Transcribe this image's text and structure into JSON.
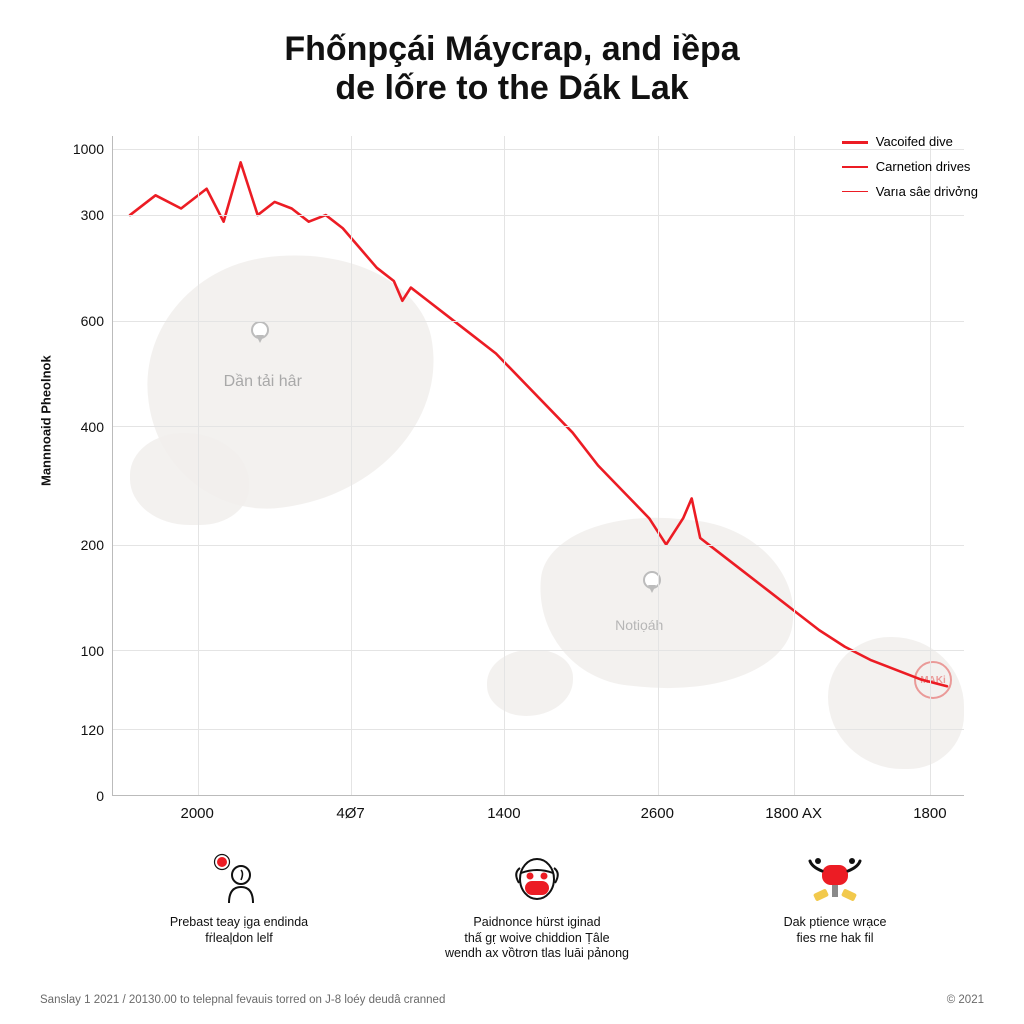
{
  "title_line1": "Fhốnpçái Máycrap, and iềpa",
  "title_line2": "de lốre to the Dák Lak",
  "title_fontsize": 34,
  "title_color": "#111111",
  "chart": {
    "type": "line",
    "background_color": "#ffffff",
    "grid_color": "#e4e4e4",
    "axis_color": "#bbbbbb",
    "yaxis_title": "Mannnoaid Pheolnok",
    "yaxis_title_fontsize": 13,
    "tick_fontsize": 14,
    "x_ticks": [
      {
        "pos_pct": 10,
        "label": "2000"
      },
      {
        "pos_pct": 28,
        "label": "4Ø7"
      },
      {
        "pos_pct": 46,
        "label": "1400"
      },
      {
        "pos_pct": 64,
        "label": "2600"
      },
      {
        "pos_pct": 80,
        "label": "1800 AX"
      },
      {
        "pos_pct": 96,
        "label": "1800"
      }
    ],
    "y_ticks": [
      {
        "pos_pct": 100,
        "label": "0"
      },
      {
        "pos_pct": 90,
        "label": "120"
      },
      {
        "pos_pct": 78,
        "label": "100"
      },
      {
        "pos_pct": 62,
        "label": "200"
      },
      {
        "pos_pct": 44,
        "label": "400"
      },
      {
        "pos_pct": 28,
        "label": "600"
      },
      {
        "pos_pct": 12,
        "label": "300"
      },
      {
        "pos_pct": 2,
        "label": "1000"
      }
    ],
    "y_grid_pct": [
      2,
      12,
      28,
      44,
      62,
      78,
      90
    ],
    "x_grid_pct": [
      10,
      28,
      46,
      64,
      80,
      96
    ],
    "line_color": "#ec1c24",
    "line_width": 2.6,
    "series_points_pct": [
      [
        2,
        12
      ],
      [
        5,
        9
      ],
      [
        8,
        11
      ],
      [
        11,
        8
      ],
      [
        13,
        13
      ],
      [
        15,
        4
      ],
      [
        17,
        12
      ],
      [
        19,
        10
      ],
      [
        21,
        11
      ],
      [
        23,
        13
      ],
      [
        25,
        12
      ],
      [
        27,
        14
      ],
      [
        29,
        17
      ],
      [
        31,
        20
      ],
      [
        33,
        22
      ],
      [
        34,
        25
      ],
      [
        35,
        23
      ],
      [
        37,
        25
      ],
      [
        39,
        27
      ],
      [
        42,
        30
      ],
      [
        45,
        33
      ],
      [
        48,
        37
      ],
      [
        51,
        41
      ],
      [
        54,
        45
      ],
      [
        57,
        50
      ],
      [
        60,
        54
      ],
      [
        63,
        58
      ],
      [
        65,
        62
      ],
      [
        67,
        58
      ],
      [
        68,
        55
      ],
      [
        69,
        61
      ],
      [
        71,
        63
      ],
      [
        74,
        66
      ],
      [
        77,
        69
      ],
      [
        80,
        72
      ],
      [
        83,
        75
      ],
      [
        86,
        77.5
      ],
      [
        89,
        79.5
      ],
      [
        92,
        81
      ],
      [
        95,
        82.5
      ],
      [
        98,
        83.5
      ]
    ],
    "map_label_1": "Dần tải hâr",
    "map_label_2": "Notiọáh",
    "watermark_text": "MAKi"
  },
  "legend": {
    "fontsize": 13,
    "items": [
      {
        "label": "Vacoifed dive",
        "color": "#ec1c24",
        "width": 3
      },
      {
        "label": "Carnetion drives",
        "color": "#ec1c24",
        "width": 2
      },
      {
        "label": "Varıa sâe drivởng",
        "color": "#ec1c24",
        "width": 1
      }
    ]
  },
  "icons": [
    {
      "name": "person-alert-icon",
      "caption_l1": "Prebast teay ịga endinda",
      "caption_l2": "fṙleaļdon lelf"
    },
    {
      "name": "mask-face-icon",
      "caption_l1": "Paidnonce hürst iginad",
      "caption_l2": "thấ gṛ woive chiddion Ṭâle",
      "caption_l3": "wendh ax vồtrơn tlas luāi pảnong"
    },
    {
      "name": "mask-cross-icon",
      "caption_l1": "Dak ptience wrạce",
      "caption_l2": "fies rne hak fil"
    }
  ],
  "footer_left": "Sanslay 1 2021 / 20130.00  to telepnal fevauis torred on J-8 loéy deudâ cranned",
  "footer_right": "©  2021"
}
